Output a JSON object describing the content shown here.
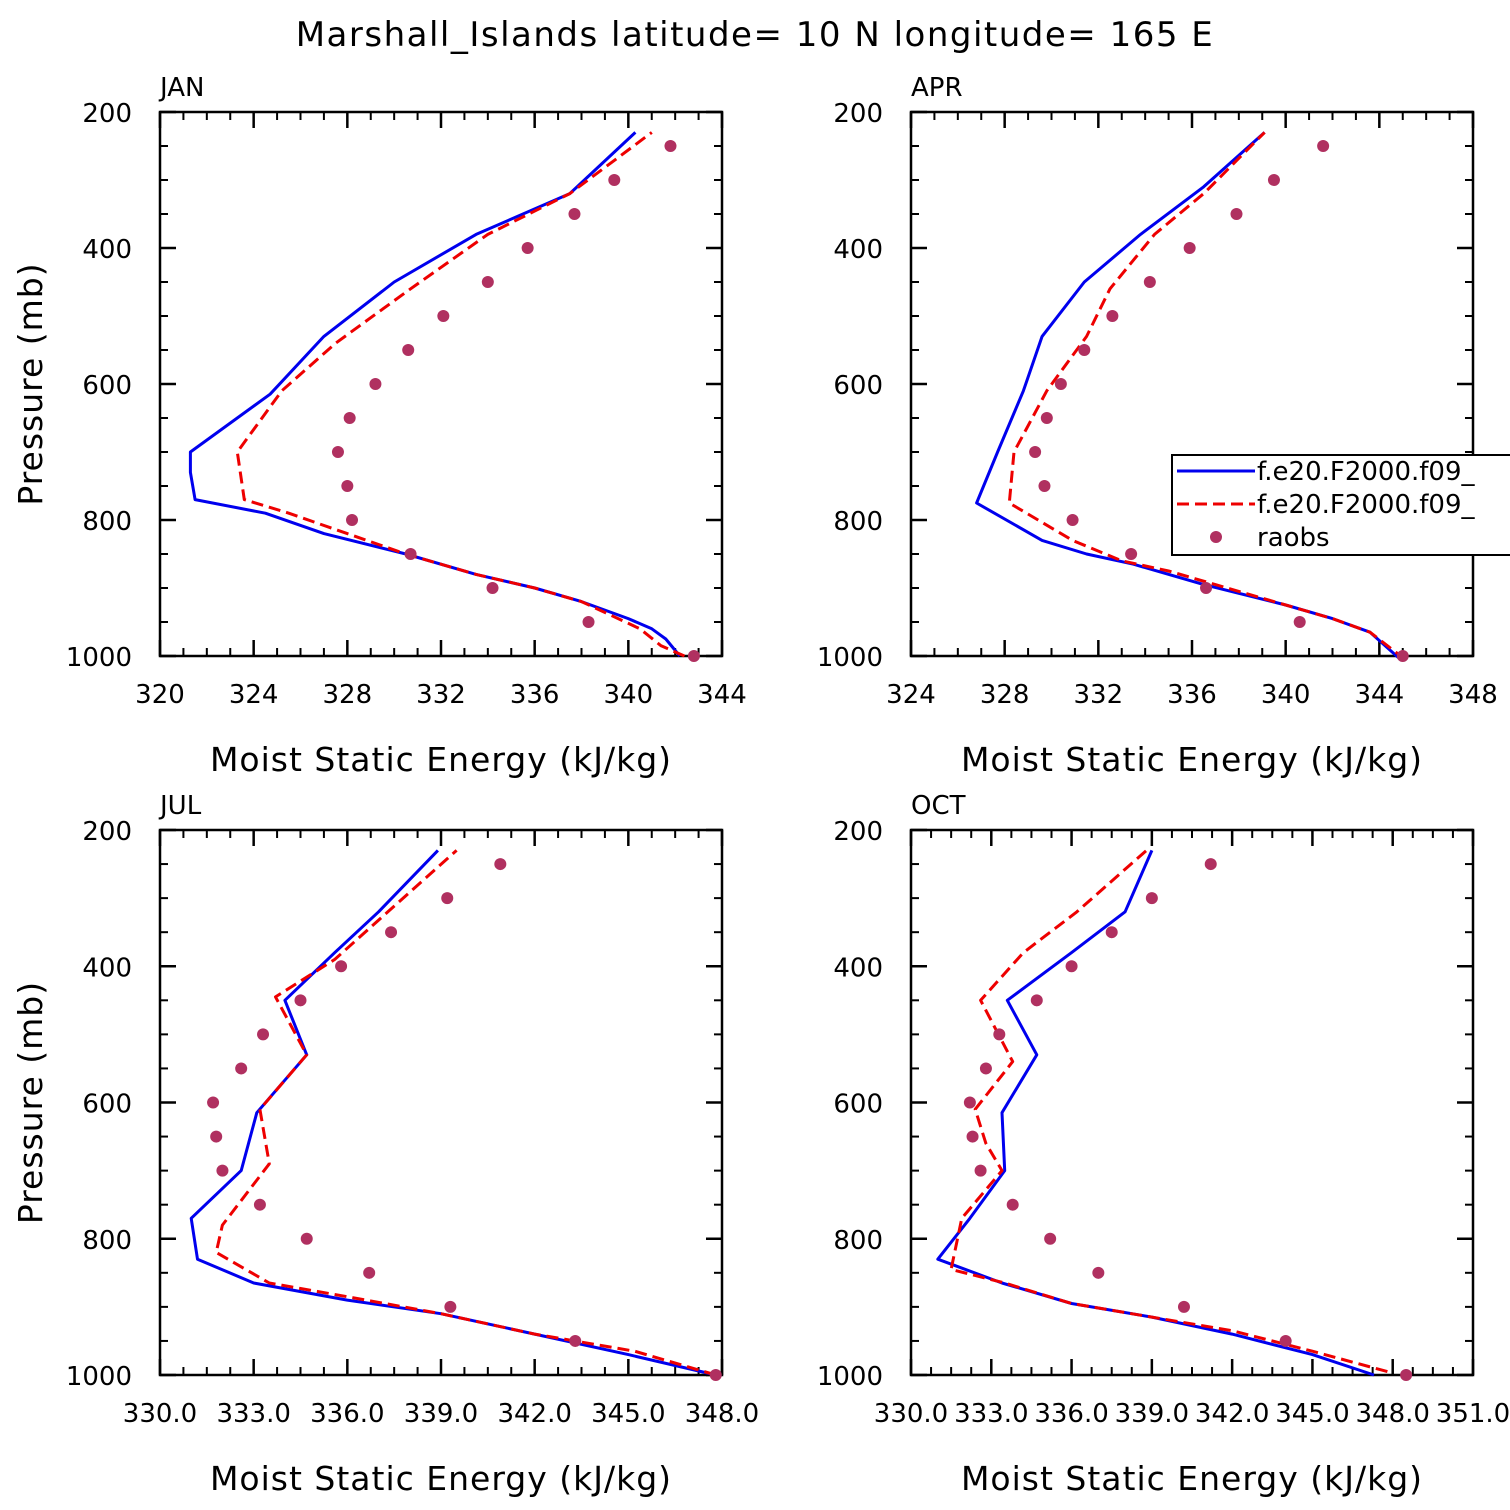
{
  "title": "Marshall_Islands  latitude= 10 N longitude= 165 E",
  "legend": {
    "entries": [
      {
        "label": "f.e20.F2000.f09_",
        "color": "#0000ee",
        "style": "solid"
      },
      {
        "label": "f.e20.F2000.f09_",
        "color": "#ee0000",
        "style": "dashed"
      },
      {
        "label": "raobs",
        "color": "#b03060",
        "style": "dots"
      }
    ]
  },
  "chart_data": [
    {
      "type": "line",
      "panel": "JAN",
      "xlabel": "Moist Static Energy (kJ/kg)",
      "ylabel": "Pressure (mb)",
      "xlim": [
        320,
        344
      ],
      "xticks": [
        "320",
        "324",
        "328",
        "332",
        "336",
        "340",
        "344"
      ],
      "ylim": [
        200,
        1000
      ],
      "yticks": [
        "200",
        "400",
        "600",
        "800",
        "1000"
      ],
      "series": [
        {
          "color": "#0000ee",
          "style": "solid",
          "x": [
            342.2,
            341.6,
            341.0,
            340.0,
            338.0,
            336.0,
            333.5,
            330.5,
            327.0,
            324.5,
            321.5,
            321.3,
            321.3,
            324.7,
            327.0,
            330.0,
            333.5,
            337.5,
            340.3
          ],
          "y": [
            1000,
            975,
            960,
            945,
            920,
            900,
            880,
            850,
            820,
            790,
            770,
            730,
            700,
            615,
            530,
            450,
            380,
            320,
            230
          ]
        },
        {
          "color": "#ee0000",
          "style": "dashed",
          "x": [
            342.4,
            341.4,
            340.5,
            338.0,
            336.0,
            333.5,
            330.5,
            328.0,
            325.5,
            323.6,
            323.3,
            325.2,
            327.5,
            330.7,
            334.0,
            337.5,
            341.0
          ],
          "y": [
            1000,
            985,
            960,
            920,
            900,
            880,
            850,
            820,
            790,
            770,
            700,
            610,
            540,
            460,
            380,
            320,
            230
          ]
        },
        {
          "color": "#b03060",
          "style": "dots",
          "x": [
            342.8,
            338.3,
            334.2,
            330.7,
            328.2,
            328.0,
            327.6,
            328.1,
            329.2,
            330.6,
            332.1,
            334.0,
            335.7,
            337.7,
            339.4,
            341.8
          ],
          "y": [
            1000,
            950,
            900,
            850,
            800,
            750,
            700,
            650,
            600,
            550,
            500,
            450,
            400,
            350,
            300,
            250
          ]
        }
      ]
    },
    {
      "type": "line",
      "panel": "APR",
      "xlabel": "Moist Static Energy (kJ/kg)",
      "ylabel": "",
      "xlim": [
        324,
        348
      ],
      "xticks": [
        "324",
        "328",
        "332",
        "336",
        "340",
        "344",
        "348"
      ],
      "ylim": [
        200,
        1000
      ],
      "yticks": [
        "200",
        "400",
        "600",
        "800",
        "1000"
      ],
      "series": [
        {
          "color": "#0000ee",
          "style": "solid",
          "x": [
            344.9,
            343.6,
            342.0,
            340.0,
            336.5,
            333.5,
            331.5,
            329.6,
            326.8,
            327.7,
            328.8,
            329.6,
            331.4,
            333.8,
            336.5,
            339.1
          ],
          "y": [
            1005,
            965,
            945,
            925,
            895,
            865,
            850,
            830,
            775,
            700,
            610,
            530,
            450,
            380,
            310,
            230
          ]
        },
        {
          "color": "#ee0000",
          "style": "dashed",
          "x": [
            345.1,
            343.6,
            342.0,
            340.0,
            337.0,
            335.0,
            333.0,
            330.9,
            328.2,
            328.4,
            329.8,
            331.5,
            332.5,
            334.4,
            336.5,
            339.1
          ],
          "y": [
            1005,
            965,
            945,
            925,
            895,
            875,
            860,
            830,
            775,
            700,
            610,
            530,
            460,
            380,
            320,
            230
          ]
        },
        {
          "color": "#b03060",
          "style": "dots",
          "x": [
            345.0,
            340.6,
            336.6,
            333.4,
            330.9,
            329.7,
            329.3,
            329.8,
            330.4,
            331.4,
            332.6,
            334.2,
            335.9,
            337.9,
            339.5,
            341.6
          ],
          "y": [
            1000,
            950,
            900,
            850,
            800,
            750,
            700,
            650,
            600,
            550,
            500,
            450,
            400,
            350,
            300,
            250
          ]
        }
      ]
    },
    {
      "type": "line",
      "panel": "JUL",
      "xlabel": "Moist Static Energy (kJ/kg)",
      "ylabel": "Pressure (mb)",
      "xlim": [
        330.0,
        348.0
      ],
      "xticks": [
        "330.0",
        "333.0",
        "336.0",
        "339.0",
        "342.0",
        "345.0",
        "348.0"
      ],
      "ylim": [
        200,
        1000
      ],
      "yticks": [
        "200",
        "400",
        "600",
        "800",
        "1000"
      ],
      "series": [
        {
          "color": "#0000ee",
          "style": "solid",
          "x": [
            347.8,
            345.0,
            342.0,
            339.0,
            336.0,
            333.0,
            331.2,
            331.0,
            332.6,
            333.1,
            334.7,
            334.0,
            335.6,
            337.0,
            338.9
          ],
          "y": [
            1000,
            970,
            940,
            910,
            890,
            865,
            830,
            770,
            700,
            615,
            530,
            450,
            380,
            320,
            230
          ]
        },
        {
          "color": "#ee0000",
          "style": "dashed",
          "x": [
            347.8,
            345.2,
            342.0,
            339.0,
            336.0,
            333.5,
            331.8,
            332.0,
            333.5,
            333.2,
            334.7,
            333.7,
            335.6,
            337.3,
            339.5
          ],
          "y": [
            1000,
            965,
            940,
            910,
            885,
            865,
            820,
            780,
            690,
            610,
            530,
            445,
            390,
            320,
            230
          ]
        },
        {
          "color": "#b03060",
          "style": "dots",
          "x": [
            347.8,
            343.3,
            339.3,
            336.7,
            334.7,
            333.2,
            332.0,
            331.8,
            331.7,
            332.6,
            333.3,
            334.5,
            335.8,
            337.4,
            339.2,
            340.9
          ],
          "y": [
            1000,
            950,
            900,
            850,
            800,
            750,
            700,
            650,
            600,
            550,
            500,
            450,
            400,
            350,
            300,
            250
          ]
        }
      ]
    },
    {
      "type": "line",
      "panel": "OCT",
      "xlabel": "Moist Static Energy (kJ/kg)",
      "ylabel": "",
      "xlim": [
        330.0,
        351.0
      ],
      "xticks": [
        "330.0",
        "333.0",
        "336.0",
        "339.0",
        "342.0",
        "345.0",
        "348.0",
        "351.0"
      ],
      "ylim": [
        200,
        1000
      ],
      "yticks": [
        "200",
        "400",
        "600",
        "800",
        "1000"
      ],
      "series": [
        {
          "color": "#0000ee",
          "style": "solid",
          "x": [
            347.3,
            345.0,
            342.0,
            339.0,
            336.0,
            333.4,
            331.0,
            331.6,
            332.2,
            333.5,
            333.4,
            334.7,
            333.6,
            336.0,
            338.0,
            339.0
          ],
          "y": [
            1000,
            970,
            940,
            915,
            895,
            865,
            830,
            800,
            770,
            700,
            615,
            530,
            450,
            380,
            320,
            230
          ]
        },
        {
          "color": "#ee0000",
          "style": "dashed",
          "x": [
            347.8,
            345.0,
            342.0,
            339.0,
            336.0,
            333.5,
            331.5,
            331.9,
            333.4,
            332.8,
            332.4,
            333.8,
            332.6,
            334.2,
            336.2,
            338.8
          ],
          "y": [
            995,
            965,
            935,
            915,
            895,
            865,
            845,
            770,
            700,
            660,
            610,
            540,
            450,
            380,
            320,
            230
          ]
        },
        {
          "color": "#b03060",
          "style": "dots",
          "x": [
            348.5,
            344.0,
            340.2,
            337.0,
            335.2,
            333.8,
            332.6,
            332.3,
            332.2,
            332.8,
            333.3,
            334.7,
            336.0,
            337.5,
            339.0,
            341.2
          ],
          "y": [
            1000,
            950,
            900,
            850,
            800,
            750,
            700,
            650,
            600,
            550,
            500,
            450,
            400,
            350,
            300,
            250
          ]
        }
      ]
    }
  ]
}
